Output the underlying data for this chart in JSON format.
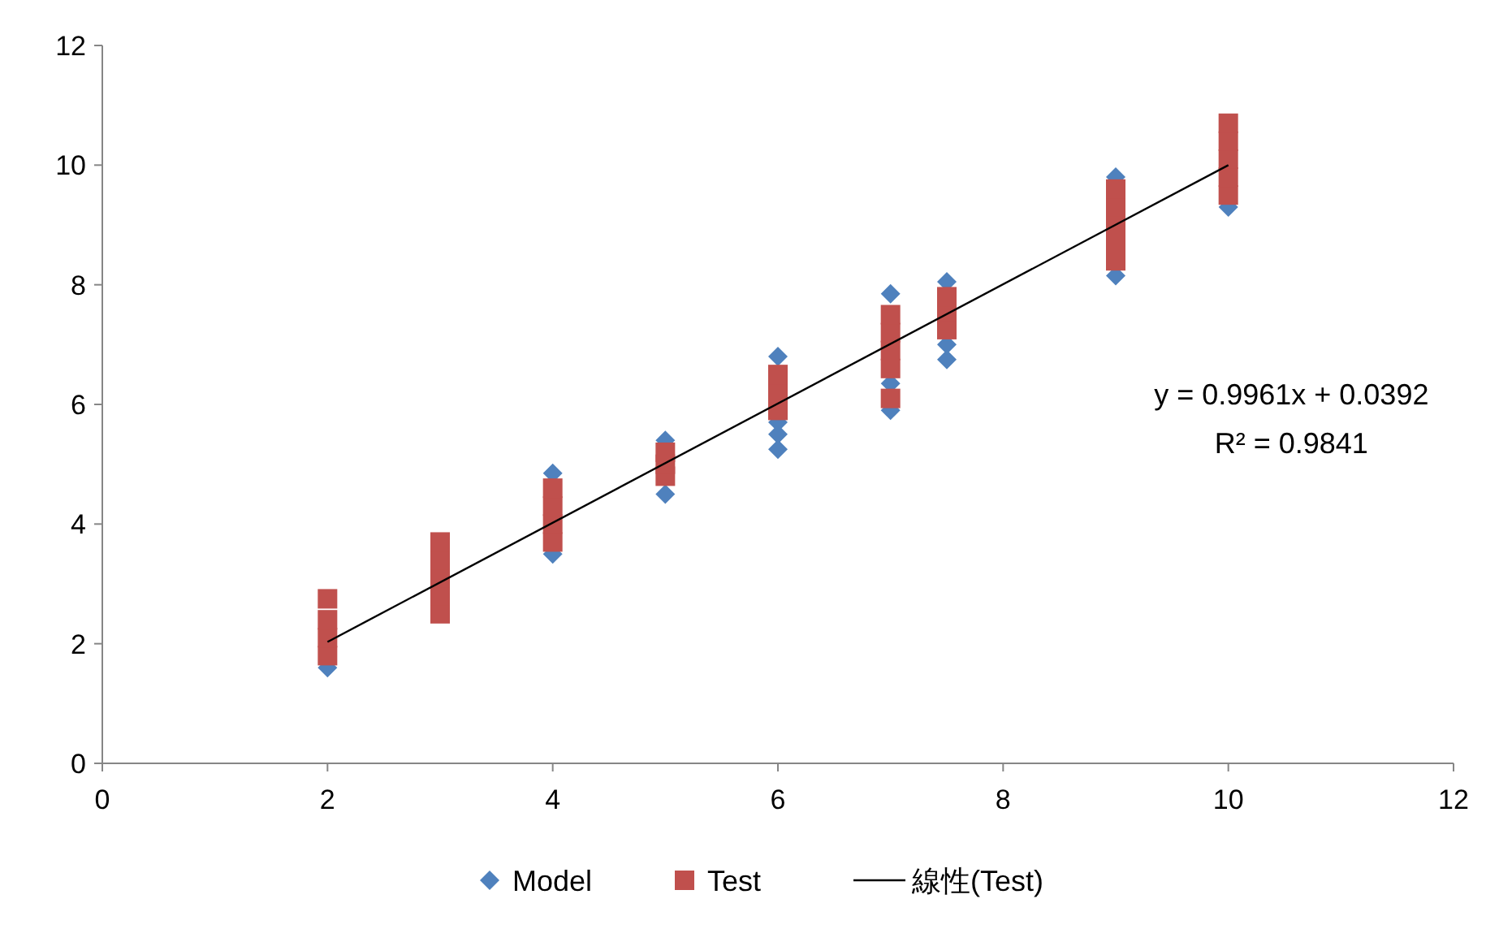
{
  "chart_data": {
    "type": "scatter",
    "xlim": [
      0,
      12
    ],
    "ylim": [
      0,
      12
    ],
    "xticks": [
      0,
      2,
      4,
      6,
      8,
      10,
      12
    ],
    "yticks": [
      0,
      2,
      4,
      6,
      8,
      10,
      12
    ],
    "grid": false,
    "legend": "bottom",
    "series": [
      {
        "name": "Model",
        "color": "#4f81bd",
        "marker": "diamond",
        "x": [
          2,
          4,
          4,
          5,
          5,
          6,
          6,
          6,
          6,
          7,
          7,
          7,
          7.5,
          7.5,
          7.5,
          9,
          9,
          10
        ],
        "values": [
          1.6,
          3.5,
          4.85,
          4.5,
          5.4,
          5.25,
          5.5,
          5.7,
          6.8,
          5.9,
          6.35,
          7.85,
          6.75,
          7.0,
          8.05,
          8.15,
          9.8,
          9.3
        ]
      },
      {
        "name": "Test",
        "color": "#c0504d",
        "marker": "square",
        "x": [
          2,
          2,
          2,
          2,
          3,
          3,
          3,
          3,
          3,
          4,
          4,
          4,
          4,
          5,
          5,
          5,
          6,
          6,
          6,
          7,
          7,
          7,
          7,
          7,
          7.5,
          7.5,
          7.5,
          9,
          9,
          9,
          9,
          9,
          10,
          10,
          10,
          10,
          10
        ],
        "values": [
          1.8,
          2.1,
          2.4,
          2.75,
          2.5,
          2.8,
          3.1,
          3.4,
          3.7,
          3.7,
          4.0,
          4.3,
          4.6,
          4.8,
          5.0,
          5.2,
          5.9,
          6.2,
          6.5,
          6.1,
          6.6,
          6.9,
          7.2,
          7.5,
          7.25,
          7.55,
          7.8,
          8.4,
          8.7,
          9.0,
          9.3,
          9.6,
          9.5,
          9.8,
          10.1,
          10.4,
          10.7
        ]
      },
      {
        "name": "線性(Test)",
        "type": "line",
        "color": "#000000",
        "x": [
          2,
          10
        ],
        "values": [
          2.03,
          10.0
        ]
      }
    ],
    "annotations": [
      "y = 0.9961x + 0.0392",
      "R² = 0.9841"
    ]
  }
}
